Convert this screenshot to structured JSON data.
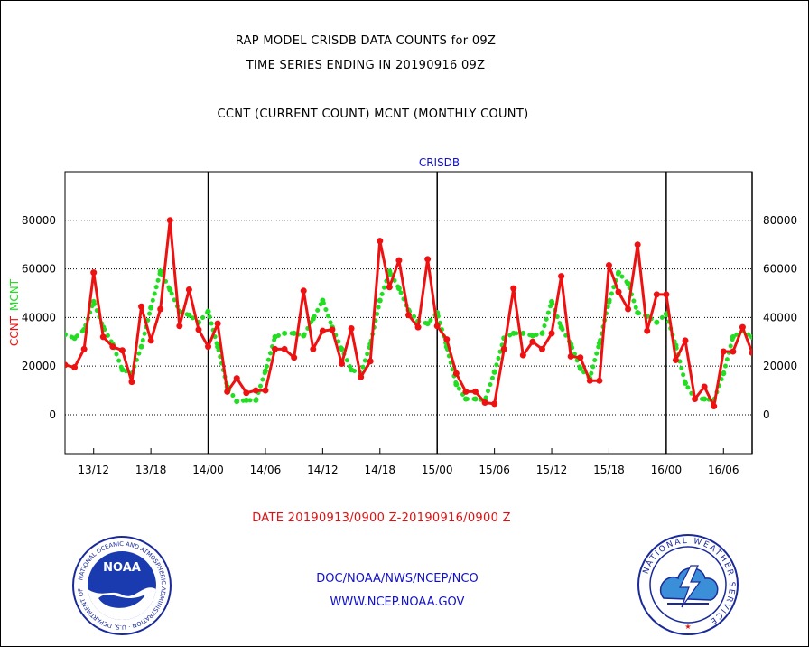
{
  "header": {
    "line1": "RAP MODEL CRISDB DATA COUNTS for 09Z",
    "line2": "TIME SERIES ENDING IN 20190916 09Z",
    "line3": "CCNT (CURRENT COUNT) MCNT (MONTHLY COUNT)"
  },
  "footer": {
    "date_range": "DATE 20190913/0900 Z-20190916/0900 Z",
    "org": "DOC/NOAA/NWS/NCEP/NCO",
    "url": "WWW.NCEP.NOAA.GOV"
  },
  "logos": {
    "left": {
      "name": "NOAA",
      "ring_text": "NATIONAL OCEANIC AND ATMOSPHERIC ADMINISTRATION · U.S. DEPARTMENT OF COMMERCE"
    },
    "right": {
      "ring_text": "NATIONAL WEATHER SERVICE"
    }
  },
  "chart_data": {
    "type": "line",
    "title": "CRISDB",
    "ylabel_left": [
      "CCNT",
      "MCNT"
    ],
    "ylim": [
      -16000,
      100000
    ],
    "yticks": [
      0,
      20000,
      40000,
      60000,
      80000
    ],
    "grid": true,
    "x_tick_labels": [
      "13/12",
      "13/18",
      "14/00",
      "14/06",
      "14/12",
      "14/18",
      "15/00",
      "15/06",
      "15/12",
      "15/18",
      "16/00",
      "16/06"
    ],
    "day_separators_hours": [
      15,
      39,
      63,
      72
    ],
    "x_unit": "hours after 13/09",
    "x_range": [
      0,
      72
    ],
    "colors": {
      "CCNT": "#ee1111",
      "MCNT": "#22dd22",
      "axis_title": "#1010c8"
    },
    "series": [
      {
        "name": "CCNT",
        "style": "solid line with dots",
        "points": [
          [
            0,
            20500
          ],
          [
            1,
            19500
          ],
          [
            2,
            27000
          ],
          [
            3,
            58500
          ],
          [
            4,
            32000
          ],
          [
            5,
            28000
          ],
          [
            6,
            26500
          ],
          [
            7,
            13500
          ],
          [
            8,
            44500
          ],
          [
            9,
            30500
          ],
          [
            10,
            43500
          ],
          [
            11,
            80000
          ],
          [
            12,
            36500
          ],
          [
            13,
            51500
          ],
          [
            14,
            35000
          ],
          [
            15,
            28000
          ],
          [
            16,
            37500
          ],
          [
            17,
            9500
          ],
          [
            18,
            15000
          ],
          [
            19,
            9000
          ],
          [
            20,
            10000
          ],
          [
            21,
            10000
          ],
          [
            22,
            27000
          ],
          [
            23,
            27000
          ],
          [
            24,
            23500
          ],
          [
            25,
            51000
          ],
          [
            26,
            27000
          ],
          [
            27,
            34500
          ],
          [
            28,
            35000
          ],
          [
            29,
            21000
          ],
          [
            30,
            35500
          ],
          [
            31,
            15500
          ],
          [
            32,
            22000
          ],
          [
            33,
            71500
          ],
          [
            34,
            52500
          ],
          [
            35,
            63500
          ],
          [
            36,
            41000
          ],
          [
            37,
            36000
          ],
          [
            38,
            64000
          ],
          [
            39,
            36500
          ],
          [
            40,
            31000
          ],
          [
            41,
            17000
          ],
          [
            42,
            9500
          ],
          [
            43,
            9500
          ],
          [
            44,
            5000
          ],
          [
            45,
            4500
          ],
          [
            46,
            27000
          ],
          [
            47,
            52000
          ],
          [
            48,
            24500
          ],
          [
            49,
            30000
          ],
          [
            50,
            27000
          ],
          [
            51,
            33500
          ],
          [
            52,
            57000
          ],
          [
            53,
            24000
          ],
          [
            54,
            23500
          ],
          [
            55,
            14000
          ],
          [
            56,
            14000
          ],
          [
            57,
            61500
          ],
          [
            58,
            50500
          ],
          [
            59,
            43500
          ],
          [
            60,
            70000
          ],
          [
            61,
            34500
          ],
          [
            62,
            49500
          ],
          [
            63,
            49500
          ],
          [
            64,
            22500
          ],
          [
            65,
            30500
          ],
          [
            66,
            6500
          ],
          [
            67,
            11500
          ],
          [
            68,
            3500
          ],
          [
            69,
            26000
          ],
          [
            70,
            26000
          ],
          [
            71,
            36000
          ],
          [
            72,
            25500
          ]
        ]
      },
      {
        "name": "MCNT",
        "style": "dotted line",
        "points": [
          [
            0,
            33000
          ],
          [
            1,
            31500
          ],
          [
            2,
            35000
          ],
          [
            3,
            46500
          ],
          [
            4,
            36000
          ],
          [
            5,
            29000
          ],
          [
            6,
            18500
          ],
          [
            7,
            17000
          ],
          [
            8,
            28000
          ],
          [
            9,
            44000
          ],
          [
            10,
            59000
          ],
          [
            11,
            51500
          ],
          [
            12,
            42500
          ],
          [
            13,
            41000
          ],
          [
            14,
            38000
          ],
          [
            15,
            42500
          ],
          [
            16,
            28000
          ],
          [
            17,
            11500
          ],
          [
            18,
            5500
          ],
          [
            19,
            6000
          ],
          [
            20,
            6000
          ],
          [
            21,
            18000
          ],
          [
            22,
            32000
          ],
          [
            23,
            33500
          ],
          [
            24,
            33500
          ],
          [
            25,
            32500
          ],
          [
            26,
            39500
          ],
          [
            27,
            47000
          ],
          [
            28,
            36000
          ],
          [
            29,
            27000
          ],
          [
            30,
            18500
          ],
          [
            31,
            17000
          ],
          [
            32,
            29000
          ],
          [
            33,
            47000
          ],
          [
            34,
            59000
          ],
          [
            35,
            52000
          ],
          [
            36,
            43000
          ],
          [
            37,
            38500
          ],
          [
            38,
            37500
          ],
          [
            39,
            42000
          ],
          [
            40,
            28000
          ],
          [
            41,
            12500
          ],
          [
            42,
            6500
          ],
          [
            43,
            6500
          ],
          [
            44,
            6000
          ],
          [
            45,
            17500
          ],
          [
            46,
            31500
          ],
          [
            47,
            33500
          ],
          [
            48,
            33500
          ],
          [
            49,
            32500
          ],
          [
            50,
            33500
          ],
          [
            51,
            46500
          ],
          [
            52,
            36000
          ],
          [
            53,
            29000
          ],
          [
            54,
            19000
          ],
          [
            55,
            15000
          ],
          [
            56,
            29500
          ],
          [
            57,
            46500
          ],
          [
            58,
            58500
          ],
          [
            59,
            54000
          ],
          [
            60,
            42000
          ],
          [
            61,
            40500
          ],
          [
            62,
            38000
          ],
          [
            63,
            41500
          ],
          [
            64,
            28500
          ],
          [
            65,
            13000
          ],
          [
            66,
            6500
          ],
          [
            67,
            6500
          ],
          [
            68,
            6000
          ],
          [
            69,
            17000
          ],
          [
            70,
            32000
          ],
          [
            71,
            34500
          ],
          [
            72,
            32000
          ]
        ]
      }
    ]
  }
}
